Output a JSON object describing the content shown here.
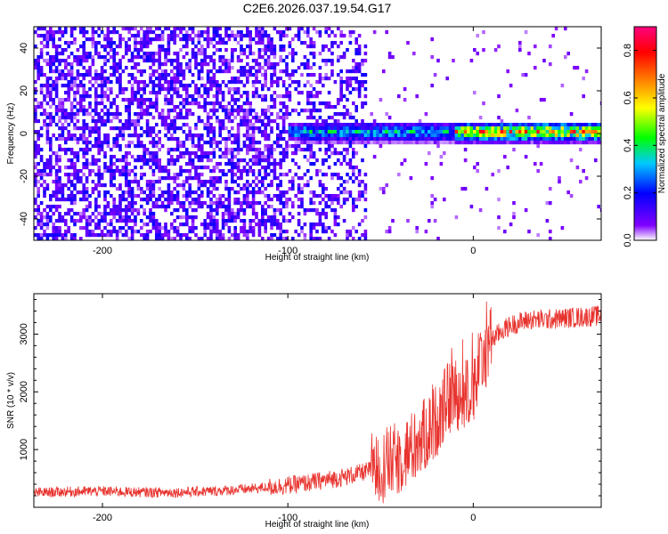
{
  "figure_title": "C2E6.2026.037.19.54.G17",
  "chart_data": [
    {
      "type": "heatmap",
      "title": "C2E6.2026.037.19.54.G17",
      "xlabel": "Height of straight line (km)",
      "ylabel": "Frequency (Hz)",
      "xlim": [
        -237,
        69
      ],
      "ylim": [
        -50,
        50
      ],
      "xticks": [
        -200,
        -100,
        0
      ],
      "xtick_labels": [
        "-200",
        "-100",
        "0"
      ],
      "yticks": [
        -40,
        -20,
        0,
        20,
        40
      ],
      "ytick_labels": [
        "-40",
        "-20",
        "0",
        "20",
        "40"
      ],
      "colorbar": {
        "label": "Normalized spectral amplitude",
        "range": [
          0,
          0.9
        ],
        "ticks": [
          0.0,
          0.2,
          0.4,
          0.6,
          0.8
        ],
        "tick_labels": [
          "0.0",
          "0.2",
          "0.4",
          "0.6",
          "0.8"
        ],
        "colormap": [
          "#ffffff",
          "#8000ff",
          "#0000ff",
          "#00c8ff",
          "#00ff00",
          "#ffff00",
          "#ff8000",
          "#ff0000",
          "#ff0080"
        ]
      },
      "description_regions": [
        {
          "x_range": [
            -237,
            -58
          ],
          "freq_range": [
            -50,
            50
          ],
          "amplitude": 0.05,
          "note": "scattered purple noise"
        },
        {
          "x_range": [
            -100,
            -10
          ],
          "freq_range": [
            -4,
            6
          ],
          "amplitude": 0.45
        },
        {
          "x_range": [
            -10,
            69
          ],
          "freq_range": [
            -2,
            4
          ],
          "amplitude": 0.75
        }
      ]
    },
    {
      "type": "line",
      "xlabel": "Height of straight line (km)",
      "ylabel": "SNR (10 * v/v)",
      "xlim": [
        -237,
        69
      ],
      "ylim": [
        0,
        3700
      ],
      "xticks": [
        -200,
        -100,
        0
      ],
      "xtick_labels": [
        "-200",
        "-100",
        "0"
      ],
      "yticks": [
        1000,
        2000,
        3000
      ],
      "ytick_labels": [
        "1000",
        "2000",
        "3000"
      ],
      "line_color": "#e8332e",
      "series": [
        {
          "name": "SNR",
          "x": [
            -237,
            -220,
            -200,
            -180,
            -160,
            -140,
            -120,
            -100,
            -90,
            -80,
            -70,
            -60,
            -50,
            -40,
            -30,
            -20,
            -15,
            -10,
            -5,
            0,
            5,
            10,
            15,
            20,
            25,
            30,
            40,
            50,
            60,
            69
          ],
          "y": [
            250,
            270,
            280,
            260,
            260,
            280,
            320,
            380,
            420,
            470,
            520,
            600,
            700,
            850,
            1100,
            1500,
            1800,
            2000,
            1900,
            2100,
            2600,
            2900,
            3050,
            3150,
            3200,
            3250,
            3250,
            3280,
            3300,
            3320
          ]
        }
      ]
    }
  ]
}
